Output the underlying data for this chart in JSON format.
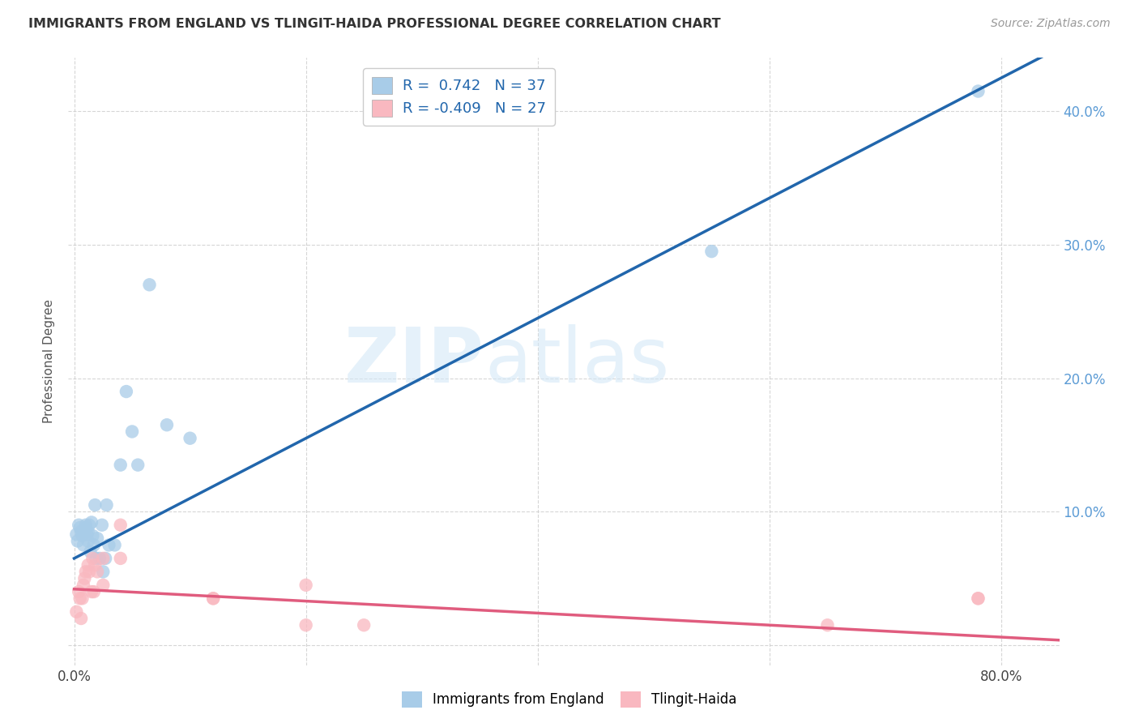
{
  "title": "IMMIGRANTS FROM ENGLAND VS TLINGIT-HAIDA PROFESSIONAL DEGREE CORRELATION CHART",
  "source": "Source: ZipAtlas.com",
  "ylabel_label": "Professional Degree",
  "xlim": [
    -0.005,
    0.85
  ],
  "ylim": [
    -0.015,
    0.44
  ],
  "legend_blue_r": "0.742",
  "legend_blue_n": "37",
  "legend_pink_r": "-0.409",
  "legend_pink_n": "27",
  "blue_scatter_x": [
    0.002,
    0.003,
    0.004,
    0.005,
    0.006,
    0.007,
    0.008,
    0.009,
    0.01,
    0.01,
    0.011,
    0.012,
    0.012,
    0.013,
    0.014,
    0.015,
    0.016,
    0.017,
    0.018,
    0.019,
    0.02,
    0.022,
    0.024,
    0.025,
    0.027,
    0.028,
    0.03,
    0.035,
    0.04,
    0.045,
    0.05,
    0.055,
    0.065,
    0.08,
    0.1,
    0.55,
    0.78
  ],
  "blue_scatter_y": [
    0.083,
    0.078,
    0.09,
    0.088,
    0.085,
    0.082,
    0.075,
    0.086,
    0.088,
    0.09,
    0.083,
    0.078,
    0.085,
    0.09,
    0.07,
    0.092,
    0.082,
    0.075,
    0.105,
    0.065,
    0.08,
    0.065,
    0.09,
    0.055,
    0.065,
    0.105,
    0.075,
    0.075,
    0.135,
    0.19,
    0.16,
    0.135,
    0.27,
    0.165,
    0.155,
    0.295,
    0.415
  ],
  "pink_scatter_x": [
    0.002,
    0.004,
    0.005,
    0.006,
    0.007,
    0.008,
    0.009,
    0.01,
    0.012,
    0.013,
    0.015,
    0.016,
    0.017,
    0.018,
    0.02,
    0.025,
    0.025,
    0.04,
    0.04,
    0.12,
    0.12,
    0.2,
    0.2,
    0.25,
    0.65,
    0.78,
    0.78
  ],
  "pink_scatter_y": [
    0.025,
    0.04,
    0.035,
    0.02,
    0.035,
    0.045,
    0.05,
    0.055,
    0.06,
    0.055,
    0.04,
    0.065,
    0.04,
    0.06,
    0.055,
    0.065,
    0.045,
    0.09,
    0.065,
    0.035,
    0.035,
    0.045,
    0.015,
    0.015,
    0.015,
    0.035,
    0.035
  ],
  "blue_color": "#a8cce8",
  "pink_color": "#f9b8c0",
  "blue_line_color": "#2166ac",
  "pink_line_color": "#e05c7e",
  "watermark_zip": "ZIP",
  "watermark_atlas": "atlas",
  "background_color": "#ffffff",
  "grid_color": "#cccccc",
  "yaxis_right_color": "#5b9bd5",
  "blue_line_intercept": 0.065,
  "blue_line_slope": 0.45,
  "pink_line_intercept": 0.042,
  "pink_line_slope": -0.045
}
